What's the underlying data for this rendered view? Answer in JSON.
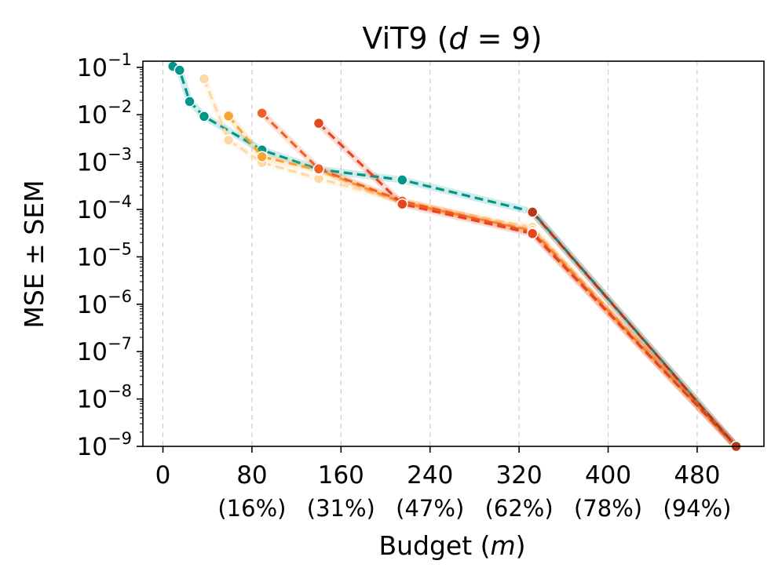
{
  "chart_data": {
    "type": "line",
    "title": "ViT9 (d = 9)",
    "title_parts": {
      "prefix": "ViT9 (",
      "var": "d",
      "eq": " = 9)"
    },
    "xlabel": "Budget (m)",
    "xlabel_parts": {
      "prefix": "Budget (",
      "var": "m",
      "suffix": ")"
    },
    "ylabel": "MSE ± SEM",
    "xlim": [
      -18,
      540
    ],
    "ylim_log10": [
      -9,
      -0.87
    ],
    "x_ticks": [
      {
        "value": 0,
        "label": "0",
        "pct": ""
      },
      {
        "value": 80,
        "label": "80",
        "pct": "(16%)"
      },
      {
        "value": 160,
        "label": "160",
        "pct": "(31%)"
      },
      {
        "value": 240,
        "label": "240",
        "pct": "(47%)"
      },
      {
        "value": 320,
        "label": "320",
        "pct": "(62%)"
      },
      {
        "value": 400,
        "label": "400",
        "pct": "(78%)"
      },
      {
        "value": 480,
        "label": "480",
        "pct": "(94%)"
      }
    ],
    "y_ticks": [
      {
        "exp": -1,
        "base": "10",
        "sup": "−1"
      },
      {
        "exp": -2,
        "base": "10",
        "sup": "−2"
      },
      {
        "exp": -3,
        "base": "10",
        "sup": "−3"
      },
      {
        "exp": -4,
        "base": "10",
        "sup": "−4"
      },
      {
        "exp": -5,
        "base": "10",
        "sup": "−5"
      },
      {
        "exp": -6,
        "base": "10",
        "sup": "−6"
      },
      {
        "exp": -7,
        "base": "10",
        "sup": "−7"
      },
      {
        "exp": -8,
        "base": "10",
        "sup": "−8"
      },
      {
        "exp": -9,
        "base": "10",
        "sup": "−9"
      }
    ],
    "grid": "vertical dashed",
    "series": [
      {
        "name": "teal",
        "color": "#00968a",
        "x": [
          9,
          15,
          24,
          37,
          89,
          140,
          215,
          332,
          515
        ],
        "y": [
          0.105,
          0.087,
          0.019,
          0.0092,
          0.0018,
          0.0007,
          0.00042,
          9e-05,
          1e-09
        ]
      },
      {
        "name": "light-peach",
        "color": "#ffd8a8",
        "x": [
          37,
          59,
          89,
          140,
          215,
          332,
          515
        ],
        "y": [
          0.057,
          0.0029,
          0.00098,
          0.00045,
          0.00015,
          4.2e-05,
          1e-09
        ]
      },
      {
        "name": "orange",
        "color": "#f7a531",
        "x": [
          59,
          89,
          140,
          215,
          332,
          515
        ],
        "y": [
          0.0094,
          0.0013,
          0.00068,
          0.00014,
          3.6e-05,
          1e-09
        ]
      },
      {
        "name": "red-orange",
        "color": "#f26026",
        "x": [
          89,
          140,
          215,
          332,
          515
        ],
        "y": [
          0.0108,
          0.00072,
          0.00015,
          3.3e-05,
          1e-09
        ]
      },
      {
        "name": "deep-red",
        "color": "#e6461e",
        "x": [
          140,
          215,
          332,
          515
        ],
        "y": [
          0.0066,
          0.00013,
          3.1e-05,
          1e-09
        ]
      },
      {
        "name": "dark-red",
        "color": "#b23a1b",
        "x": [
          332,
          515
        ],
        "y": [
          8.8e-05,
          1e-09
        ]
      }
    ]
  }
}
